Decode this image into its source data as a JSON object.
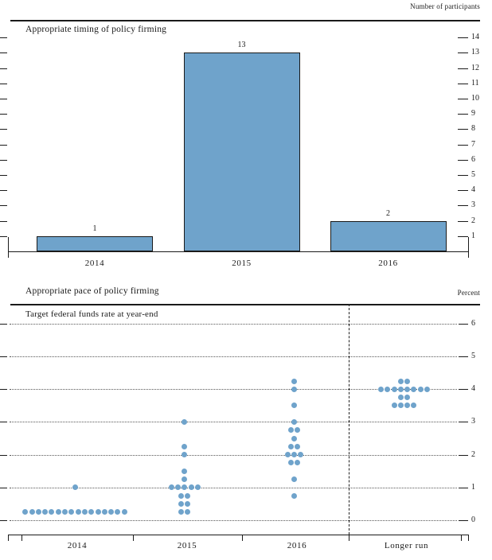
{
  "chart_data": [
    {
      "type": "bar",
      "title": "Appropriate timing of policy firming",
      "unit_label": "Number of participants",
      "categories": [
        "2014",
        "2015",
        "2016"
      ],
      "values": [
        1,
        13,
        2
      ],
      "bar_labels": [
        "1",
        "13",
        "2"
      ],
      "ylim": [
        0,
        14
      ],
      "yticks": [
        1,
        2,
        3,
        4,
        5,
        6,
        7,
        8,
        9,
        10,
        11,
        12,
        13,
        14
      ],
      "bar_color": "#6fa3cb",
      "grid": "off",
      "legend": "none"
    },
    {
      "type": "scatter",
      "title": "Appropriate pace of policy firming",
      "subtitle": "Target federal funds rate at year-end",
      "unit_label": "Percent",
      "categories": [
        "2014",
        "2015",
        "2016",
        "Longer run"
      ],
      "ylim": [
        0,
        6
      ],
      "yticks": [
        0,
        1,
        2,
        3,
        4,
        5,
        6
      ],
      "dot_color": "#6fa3cb",
      "grid": "dotted-horizontal",
      "separator_before": "Longer run",
      "series": [
        {
          "name": "2014",
          "points": [
            {
              "rate": 1.0,
              "count": 1
            },
            {
              "rate": 0.25,
              "count": 16
            }
          ]
        },
        {
          "name": "2015",
          "points": [
            {
              "rate": 3.0,
              "count": 1
            },
            {
              "rate": 2.25,
              "count": 1
            },
            {
              "rate": 2.0,
              "count": 1
            },
            {
              "rate": 1.5,
              "count": 1
            },
            {
              "rate": 1.25,
              "count": 1
            },
            {
              "rate": 1.0,
              "count": 5
            },
            {
              "rate": 0.75,
              "count": 2
            },
            {
              "rate": 0.5,
              "count": 2
            },
            {
              "rate": 0.25,
              "count": 2
            }
          ]
        },
        {
          "name": "2016",
          "points": [
            {
              "rate": 4.25,
              "count": 1
            },
            {
              "rate": 4.0,
              "count": 1
            },
            {
              "rate": 3.5,
              "count": 1
            },
            {
              "rate": 3.0,
              "count": 1
            },
            {
              "rate": 2.75,
              "count": 2
            },
            {
              "rate": 2.5,
              "count": 1
            },
            {
              "rate": 2.25,
              "count": 2
            },
            {
              "rate": 2.0,
              "count": 3
            },
            {
              "rate": 1.75,
              "count": 2
            },
            {
              "rate": 1.25,
              "count": 1
            },
            {
              "rate": 0.75,
              "count": 1
            }
          ]
        },
        {
          "name": "Longer run",
          "points": [
            {
              "rate": 4.25,
              "count": 2
            },
            {
              "rate": 4.0,
              "count": 8
            },
            {
              "rate": 3.75,
              "count": 2
            },
            {
              "rate": 3.5,
              "count": 4
            }
          ]
        }
      ]
    }
  ]
}
